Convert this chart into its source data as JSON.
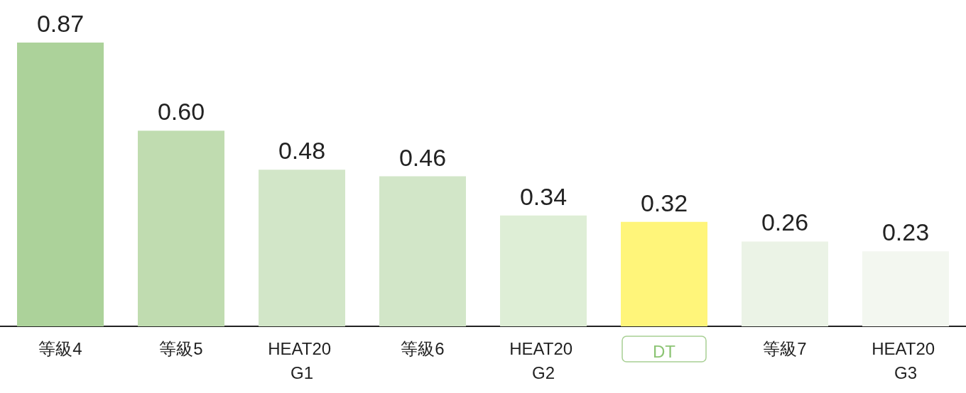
{
  "chart_data": {
    "type": "bar",
    "categories": [
      "等級4",
      "等級5",
      "HEAT20 G1",
      "等級6",
      "HEAT20 G2",
      "DT",
      "等級7",
      "HEAT20 G3"
    ],
    "values": [
      0.87,
      0.6,
      0.48,
      0.46,
      0.34,
      0.32,
      0.26,
      0.23
    ],
    "value_labels": [
      "0.87",
      "0.60",
      "0.48",
      "0.46",
      "0.34",
      "0.32",
      "0.26",
      "0.23"
    ],
    "colors": [
      "#acd29a",
      "#c0dcb0",
      "#d2e6c8",
      "#d2e6c8",
      "#deeed6",
      "#fff57a",
      "#ebf3e6",
      "#f3f7f0"
    ]
  }
}
